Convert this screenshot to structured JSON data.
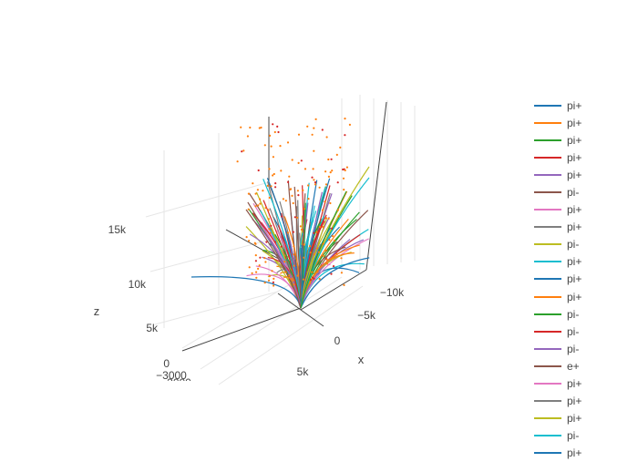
{
  "chart_data": {
    "type": "line3d",
    "axes": {
      "x": {
        "title": "x",
        "ticks": [
          "5k",
          "0",
          "−5k",
          "−10k"
        ]
      },
      "y": {
        "title": "",
        "ticks": [
          "−3000",
          "−2000"
        ]
      },
      "z": {
        "title": "z",
        "ticks": [
          "0",
          "5k",
          "10k",
          "15k"
        ]
      }
    },
    "grid": true,
    "legend_placement": "right",
    "series": [
      {
        "name": "pi+",
        "color": "#1f77b4"
      },
      {
        "name": "pi+",
        "color": "#ff7f0e"
      },
      {
        "name": "pi+",
        "color": "#2ca02c"
      },
      {
        "name": "pi+",
        "color": "#d62728"
      },
      {
        "name": "pi+",
        "color": "#9467bd"
      },
      {
        "name": "pi-",
        "color": "#8c564b"
      },
      {
        "name": "pi+",
        "color": "#e377c2"
      },
      {
        "name": "pi+",
        "color": "#7f7f7f"
      },
      {
        "name": "pi-",
        "color": "#bcbd22"
      },
      {
        "name": "pi+",
        "color": "#17becf"
      },
      {
        "name": "pi+",
        "color": "#1f77b4"
      },
      {
        "name": "pi+",
        "color": "#ff7f0e"
      },
      {
        "name": "pi-",
        "color": "#2ca02c"
      },
      {
        "name": "pi-",
        "color": "#d62728"
      },
      {
        "name": "pi-",
        "color": "#9467bd"
      },
      {
        "name": "e+",
        "color": "#8c564b"
      },
      {
        "name": "pi+",
        "color": "#e377c2"
      },
      {
        "name": "pi+",
        "color": "#7f7f7f"
      },
      {
        "name": "pi+",
        "color": "#bcbd22"
      },
      {
        "name": "pi-",
        "color": "#17becf"
      },
      {
        "name": "pi+",
        "color": "#1f77b4"
      }
    ]
  }
}
